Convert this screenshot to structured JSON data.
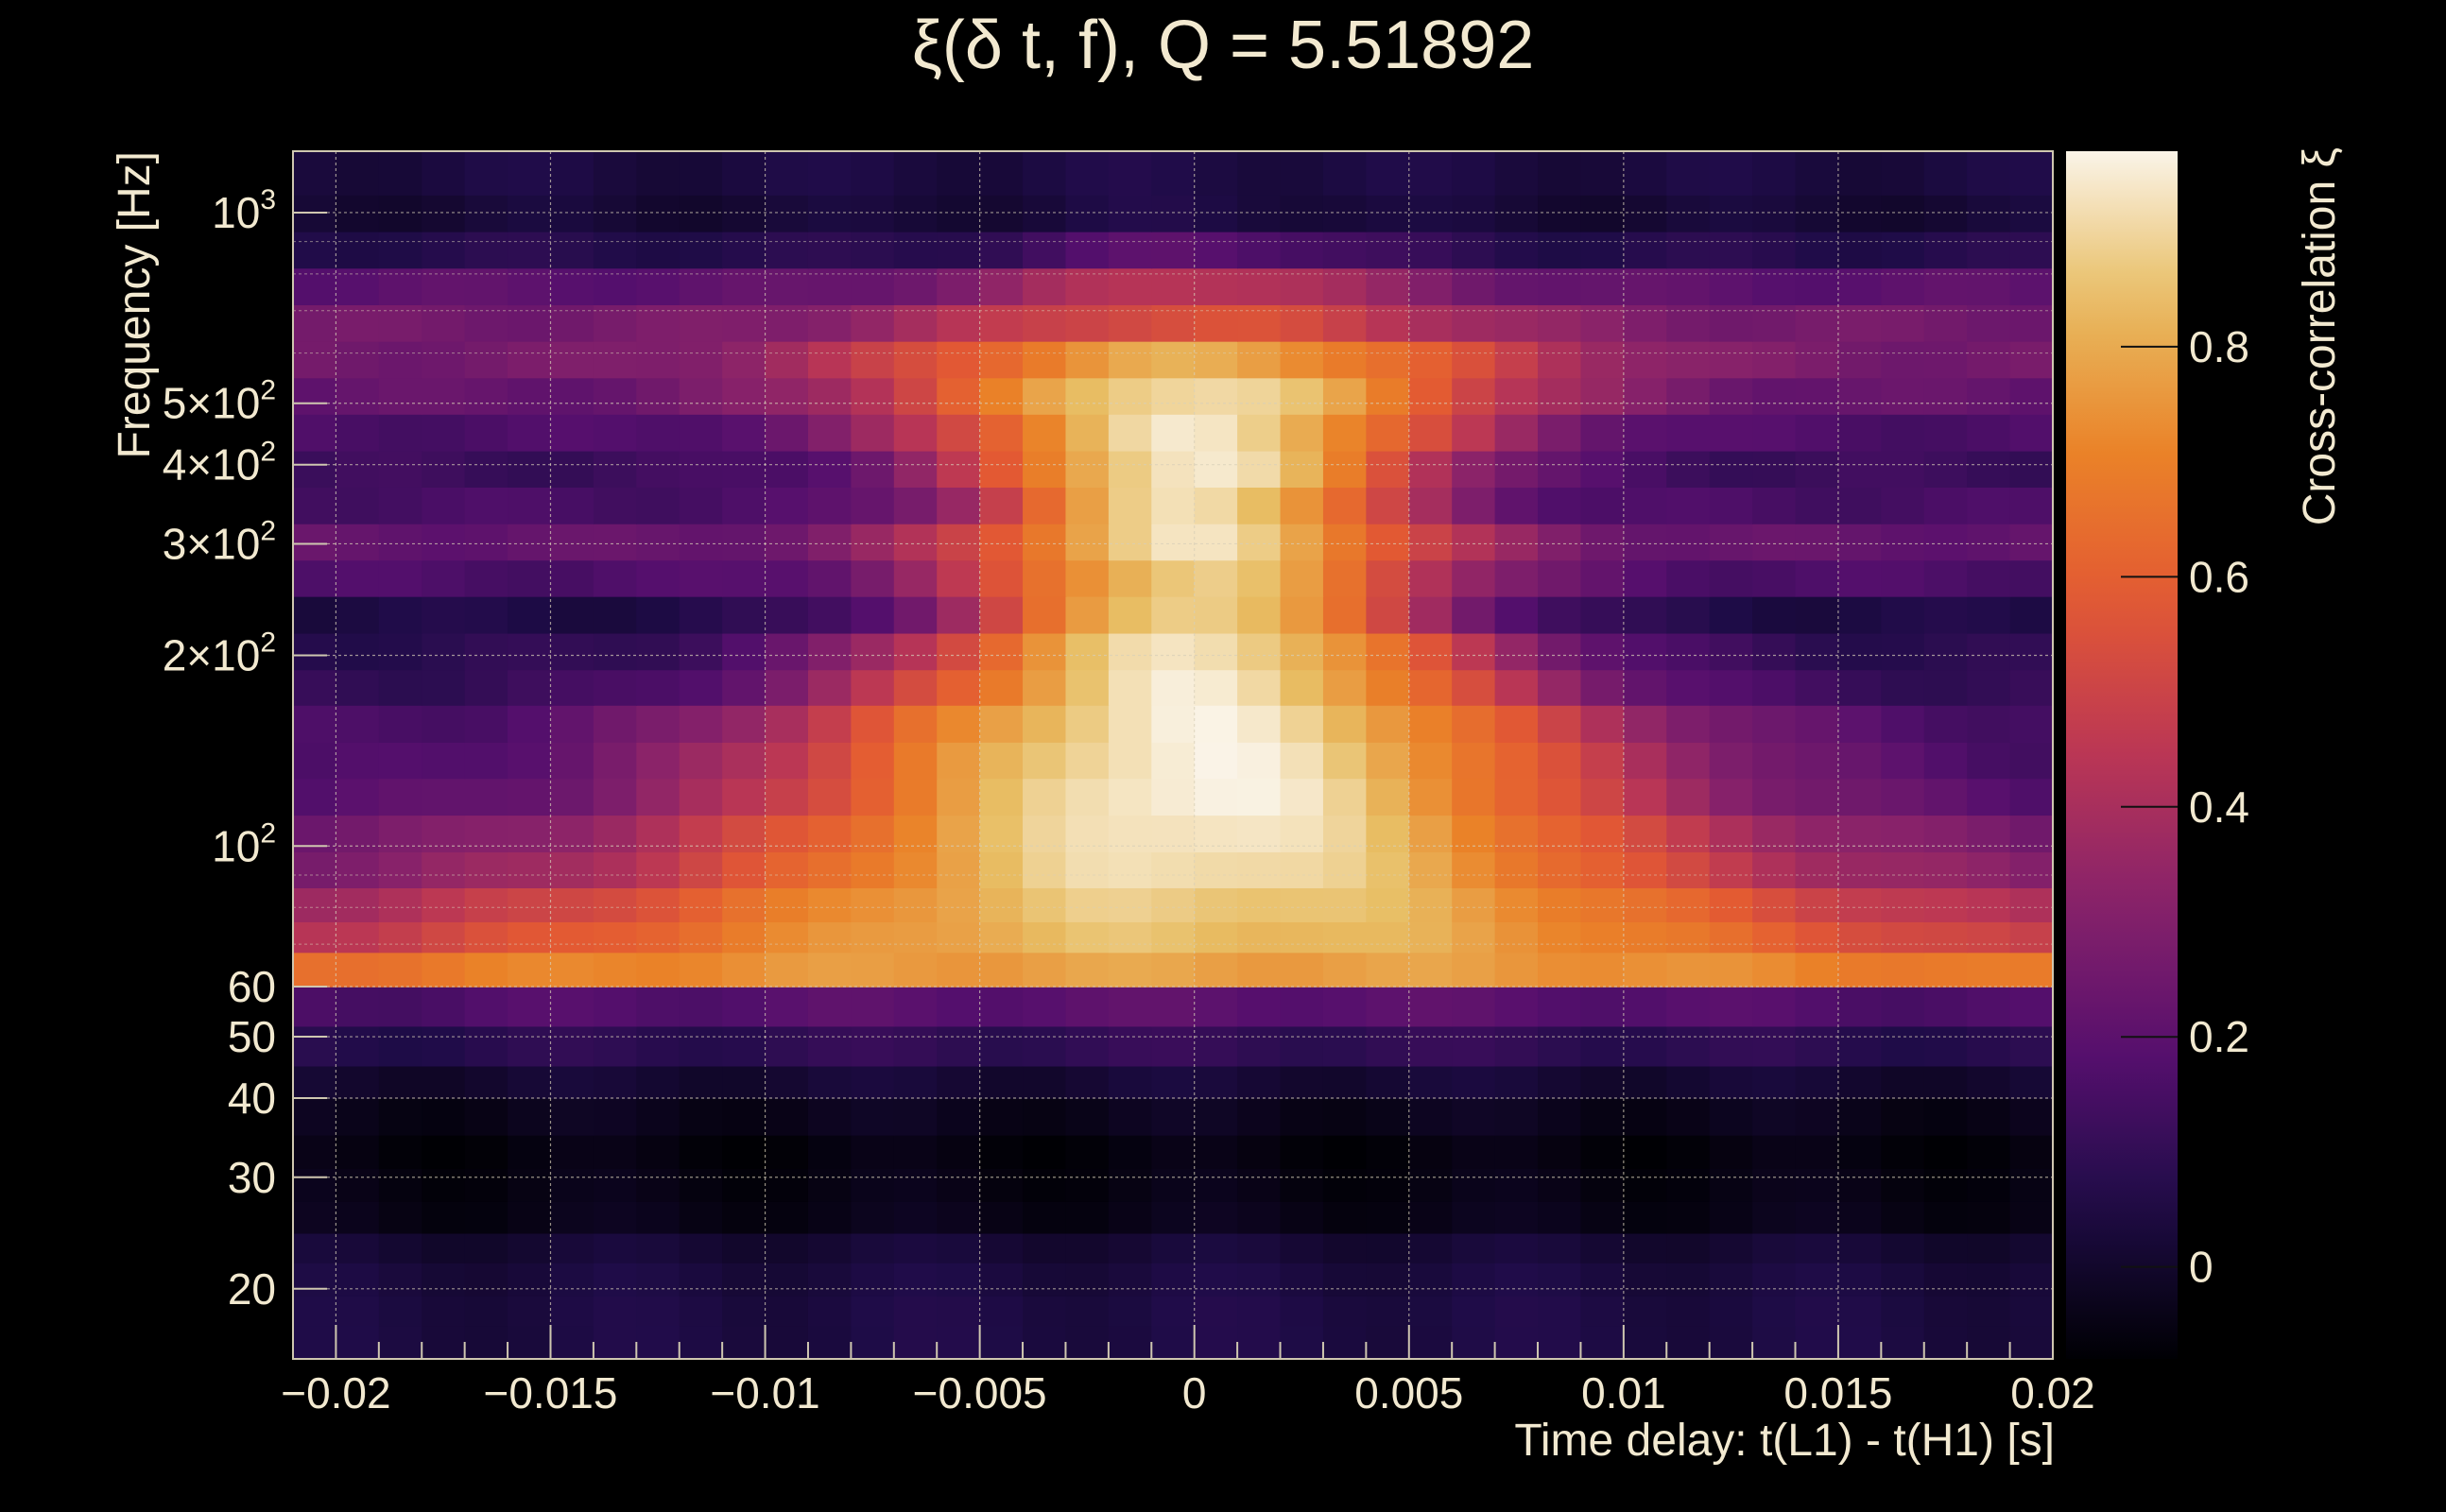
{
  "chart_data": {
    "type": "heatmap",
    "title": "ξ(δ t, f), Q = 5.51892",
    "xlabel": "Time delay: t(L1) - t(H1) [s]",
    "ylabel": "Frequency [Hz]",
    "colorbar_label": "Cross-correlation ξ",
    "x_scale": "linear",
    "y_scale": "log",
    "xlim": [
      -0.021,
      0.02
    ],
    "ylim": [
      15.5,
      1250
    ],
    "zlim": [
      -0.08,
      0.97
    ],
    "colormap": "inferno",
    "grid": true,
    "x_ticks": [
      {
        "value": -0.02,
        "label": "−0.02"
      },
      {
        "value": -0.015,
        "label": "−0.015"
      },
      {
        "value": -0.01,
        "label": "−0.01"
      },
      {
        "value": -0.005,
        "label": "−0.005"
      },
      {
        "value": 0,
        "label": "0"
      },
      {
        "value": 0.005,
        "label": "0.005"
      },
      {
        "value": 0.01,
        "label": "0.01"
      },
      {
        "value": 0.015,
        "label": "0.015"
      },
      {
        "value": 0.02,
        "label": "0.02"
      }
    ],
    "y_ticks": [
      {
        "value": 20,
        "label": "20",
        "sup": ""
      },
      {
        "value": 30,
        "label": "30",
        "sup": ""
      },
      {
        "value": 40,
        "label": "40",
        "sup": ""
      },
      {
        "value": 50,
        "label": "50",
        "sup": ""
      },
      {
        "value": 60,
        "label": "60",
        "sup": ""
      },
      {
        "value": 100,
        "label": "10",
        "sup": "2"
      },
      {
        "value": 200,
        "label": "2×10",
        "sup": "2"
      },
      {
        "value": 300,
        "label": "3×10",
        "sup": "2"
      },
      {
        "value": 400,
        "label": "4×10",
        "sup": "2"
      },
      {
        "value": 500,
        "label": "5×10",
        "sup": "2"
      },
      {
        "value": 1000,
        "label": "10",
        "sup": "3"
      }
    ],
    "colorbar_ticks": [
      {
        "value": 0,
        "label": "0"
      },
      {
        "value": 0.2,
        "label": "0.2"
      },
      {
        "value": 0.4,
        "label": "0.4"
      },
      {
        "value": 0.6,
        "label": "0.6"
      },
      {
        "value": 0.8,
        "label": "0.8"
      }
    ],
    "time_bins": [
      -0.021,
      0.02,
      41
    ],
    "frequency_bands": [
      {
        "f": [
          15.5,
          17.5
        ],
        "peak": 0.05,
        "base": 0.02,
        "width": 0.02
      },
      {
        "f": [
          17.5,
          19.5
        ],
        "peak": 0.05,
        "base": 0.02,
        "width": 0.02
      },
      {
        "f": [
          19.5,
          22
        ],
        "peak": 0.04,
        "base": 0.02,
        "width": 0.02
      },
      {
        "f": [
          22,
          24.5
        ],
        "peak": 0.02,
        "base": 0.0,
        "width": 0.02
      },
      {
        "f": [
          24.5,
          27.5
        ],
        "peak": -0.04,
        "base": -0.05,
        "width": 0.02
      },
      {
        "f": [
          27.5,
          31
        ],
        "peak": -0.05,
        "base": -0.05,
        "width": 0.02
      },
      {
        "f": [
          31,
          35
        ],
        "peak": -0.06,
        "base": -0.06,
        "width": 0.02
      },
      {
        "f": [
          35,
          40
        ],
        "peak": -0.03,
        "base": -0.05,
        "width": 0.02
      },
      {
        "f": [
          40,
          45
        ],
        "peak": 0.02,
        "base": -0.02,
        "width": 0.02
      },
      {
        "f": [
          45,
          52
        ],
        "peak": 0.1,
        "base": 0.05,
        "width": 0.015
      },
      {
        "f": [
          52,
          60
        ],
        "peak": 0.2,
        "base": 0.13,
        "width": 0.015
      },
      {
        "f": [
          60,
          68
        ],
        "peak": 0.78,
        "base": 0.48,
        "width": 0.02
      },
      {
        "f": [
          68,
          76
        ],
        "peak": 0.85,
        "base": 0.33,
        "width": 0.012
      },
      {
        "f": [
          76,
          86
        ],
        "peak": 0.88,
        "base": 0.32,
        "width": 0.01
      },
      {
        "f": [
          86,
          98
        ],
        "peak": 0.93,
        "base": 0.27,
        "width": 0.008
      },
      {
        "f": [
          98,
          112
        ],
        "peak": 0.95,
        "base": 0.24,
        "width": 0.0075
      },
      {
        "f": [
          112,
          128
        ],
        "peak": 0.97,
        "base": 0.17,
        "width": 0.007
      },
      {
        "f": [
          128,
          146
        ],
        "peak": 0.96,
        "base": 0.14,
        "width": 0.007
      },
      {
        "f": [
          146,
          167
        ],
        "peak": 0.95,
        "base": 0.14,
        "width": 0.0065
      },
      {
        "f": [
          167,
          190
        ],
        "peak": 0.94,
        "base": 0.1,
        "width": 0.0055
      },
      {
        "f": [
          190,
          217
        ],
        "peak": 0.93,
        "base": 0.08,
        "width": 0.005
      },
      {
        "f": [
          217,
          248
        ],
        "peak": 0.9,
        "base": 0.05,
        "width": 0.004
      },
      {
        "f": [
          248,
          283
        ],
        "peak": 0.88,
        "base": 0.16,
        "width": 0.004
      },
      {
        "f": [
          283,
          323
        ],
        "peak": 0.92,
        "base": 0.22,
        "width": 0.004
      },
      {
        "f": [
          323,
          369
        ],
        "peak": 0.93,
        "base": 0.15,
        "width": 0.0035
      },
      {
        "f": [
          369,
          421
        ],
        "peak": 0.95,
        "base": 0.12,
        "width": 0.004
      },
      {
        "f": [
          421,
          481
        ],
        "peak": 0.93,
        "base": 0.16,
        "width": 0.0045
      },
      {
        "f": [
          481,
          549
        ],
        "peak": 0.92,
        "base": 0.22,
        "width": 0.005
      },
      {
        "f": [
          549,
          627
        ],
        "peak": 0.8,
        "base": 0.26,
        "width": 0.0055
      },
      {
        "f": [
          627,
          716
        ],
        "peak": 0.55,
        "base": 0.26,
        "width": 0.005
      },
      {
        "f": [
          716,
          818
        ],
        "peak": 0.45,
        "base": 0.2,
        "width": 0.004
      },
      {
        "f": [
          818,
          934
        ],
        "peak": 0.2,
        "base": 0.07,
        "width": 0.003
      },
      {
        "f": [
          934,
          1067
        ],
        "peak": 0.05,
        "base": 0.02,
        "width": 0.003
      },
      {
        "f": [
          1067,
          1250
        ],
        "peak": 0.05,
        "base": 0.04,
        "width": 0.003
      }
    ]
  }
}
